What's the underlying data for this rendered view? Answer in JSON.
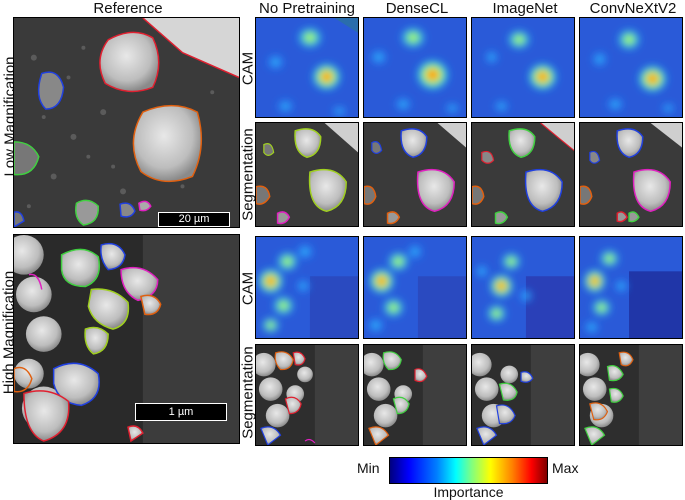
{
  "headers": {
    "reference": "Reference",
    "no_pretraining": "No Pretraining",
    "densecl": "DenseCL",
    "imagenet": "ImageNet",
    "convnextv2": "ConvNeXtV2"
  },
  "rows": {
    "low": "Low Magnification",
    "high": "High Magnification"
  },
  "row_types": {
    "cam": "CAM",
    "segmentation": "Segmentation"
  },
  "scale_bars": {
    "low": "20 µm",
    "high": "1 µm"
  },
  "colorbar": {
    "min": "Min",
    "max": "Max",
    "title": "Importance"
  },
  "colors": {
    "seg_orange": "#e06010",
    "seg_green": "#40d040",
    "seg_blue": "#2040e0",
    "seg_magenta": "#e020c0",
    "seg_red": "#e02030",
    "seg_yellowgreen": "#a0d020"
  }
}
